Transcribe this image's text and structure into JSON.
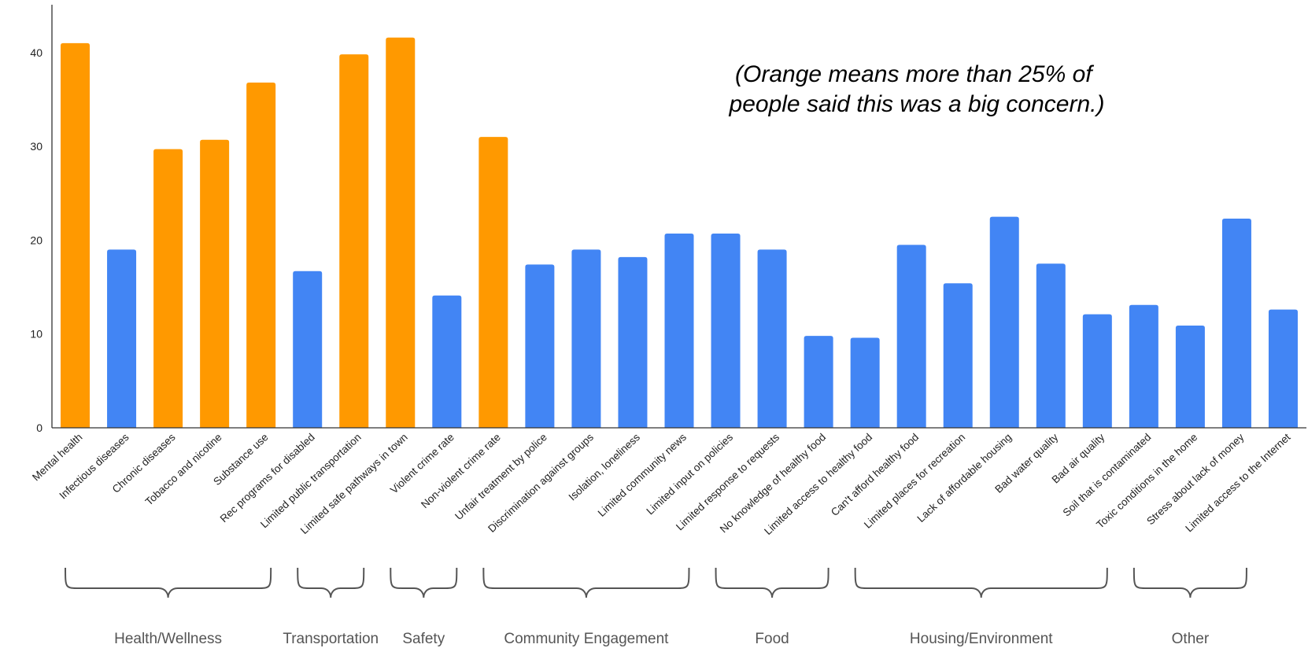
{
  "chart_data": {
    "type": "bar",
    "title": "",
    "xlabel": "",
    "ylabel": "",
    "ylim": [
      0,
      45
    ],
    "yticks": [
      0,
      10,
      20,
      30,
      40
    ],
    "grid": false,
    "colors": {
      "high": "#FF9900",
      "normal": "#4285F4"
    },
    "categories": [
      "Mental health",
      "Infectious diseases",
      "Chronic diseases",
      "Tobacco and nicotine",
      "Substance use",
      "Rec programs for disabled",
      "Limited public transportation",
      "Limited safe pathways in town",
      "Violent crime rate",
      "Non-violent crime rate",
      "Unfair treatment by police",
      "Discrimination against groups",
      "Isolation, loneliness",
      "Limited community news",
      "Limited input on policies",
      "Limited response to requests",
      "No knowledge of healthy food",
      "Limited access to healthy food",
      "Can't afford healthy food",
      "Limited places for recreation",
      "Lack of affordable housing",
      "Bad water quality",
      "Bad air quality",
      "Soil that is contaminated",
      "Toxic conditions in the home",
      "Stress about lack of money",
      "Limited access to the Internet"
    ],
    "values": [
      41,
      19,
      29.7,
      30.7,
      36.8,
      16.7,
      39.8,
      41.6,
      14.1,
      31,
      17.4,
      19,
      18.2,
      20.7,
      20.7,
      19,
      9.8,
      9.6,
      19.5,
      15.4,
      22.5,
      17.5,
      12.1,
      13.1,
      10.9,
      22.3,
      12.6
    ],
    "highlight": [
      true,
      false,
      true,
      true,
      true,
      false,
      true,
      true,
      false,
      true,
      false,
      false,
      false,
      false,
      false,
      false,
      false,
      false,
      false,
      false,
      false,
      false,
      false,
      false,
      false,
      false,
      false
    ],
    "groups": [
      {
        "label": "Health/Wellness",
        "start": 0,
        "end": 4
      },
      {
        "label": "Transportation",
        "start": 5,
        "end": 6
      },
      {
        "label": "Safety",
        "start": 7,
        "end": 8
      },
      {
        "label": "Community Engagement",
        "start": 9,
        "end": 13
      },
      {
        "label": "Food",
        "start": 14,
        "end": 16
      },
      {
        "label": "Housing/Environment",
        "start": 17,
        "end": 22
      },
      {
        "label": "Other",
        "start": 23,
        "end": 25
      }
    ],
    "annotation": [
      "(Orange means more than 25% of",
      "people said this was a big concern.)"
    ]
  }
}
